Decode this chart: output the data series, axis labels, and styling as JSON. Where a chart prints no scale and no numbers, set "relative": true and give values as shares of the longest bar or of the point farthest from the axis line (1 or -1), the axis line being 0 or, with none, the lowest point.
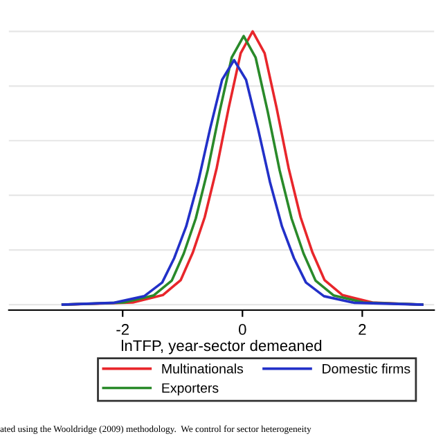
{
  "chart_data": {
    "type": "line",
    "relative": true,
    "xlabel": "lnTFP, year-sector demeaned",
    "xlim": [
      -3.9,
      3.2
    ],
    "xticks": [
      -2,
      0,
      2
    ],
    "grid": "y",
    "legend": "bottom",
    "marker": "none",
    "line_style": "solid",
    "series": [
      {
        "name": "Multinationals",
        "color": "#e8262b",
        "x": [
          -3,
          -1.83,
          -1.33,
          -1.03,
          -0.83,
          -0.63,
          -0.43,
          -0.23,
          -0.03,
          0.17,
          0.37,
          0.57,
          0.77,
          0.97,
          1.17,
          1.37,
          1.67,
          2.17,
          3
        ],
        "values": [
          0,
          0.008,
          0.035,
          0.09,
          0.19,
          0.32,
          0.5,
          0.72,
          0.92,
          1,
          0.92,
          0.72,
          0.5,
          0.32,
          0.19,
          0.09,
          0.035,
          0.008,
          0
        ]
      },
      {
        "name": "Exporters",
        "color": "#2a8a2a",
        "x": [
          -3,
          -1.98,
          -1.48,
          -1.18,
          -0.98,
          -0.78,
          -0.58,
          -0.38,
          -0.18,
          0.02,
          0.22,
          0.42,
          0.62,
          0.82,
          1.02,
          1.22,
          1.52,
          2.02,
          3
        ],
        "values": [
          0,
          0.008,
          0.034,
          0.088,
          0.187,
          0.315,
          0.492,
          0.708,
          0.904,
          0.983,
          0.904,
          0.708,
          0.492,
          0.315,
          0.187,
          0.088,
          0.034,
          0.008,
          0
        ]
      },
      {
        "name": "Domestic firms",
        "color": "#2230c8",
        "x": [
          -3,
          -2.14,
          -1.64,
          -1.34,
          -1.14,
          -0.94,
          -0.74,
          -0.54,
          -0.34,
          -0.14,
          0.06,
          0.26,
          0.46,
          0.66,
          0.86,
          1.06,
          1.36,
          1.86,
          3
        ],
        "values": [
          0,
          0.007,
          0.031,
          0.081,
          0.17,
          0.286,
          0.448,
          0.644,
          0.823,
          0.895,
          0.823,
          0.644,
          0.448,
          0.286,
          0.17,
          0.081,
          0.031,
          0.007,
          0
        ]
      }
    ],
    "annotations": [
      "ated using the Wooldridge (2009) methodology.  We control for sector heterogeneity"
    ]
  }
}
